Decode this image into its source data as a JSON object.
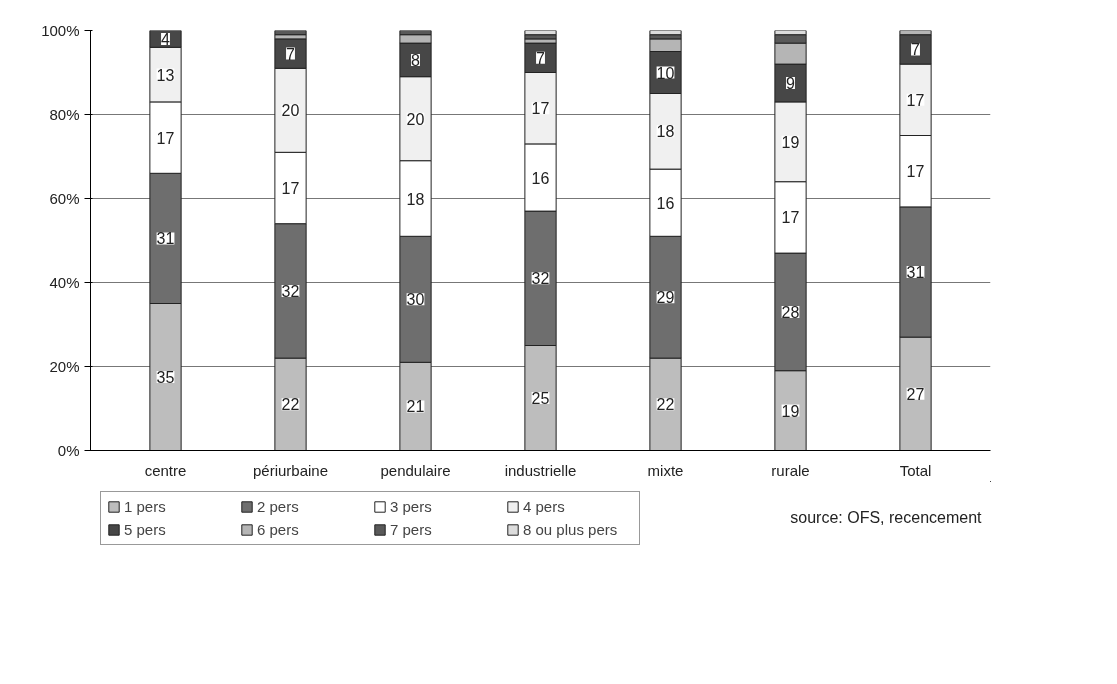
{
  "chart_data": {
    "type": "bar",
    "stacked": true,
    "categories": [
      "centre",
      "périurbaine",
      "pendulaire",
      "industrielle",
      "mixte",
      "rurale",
      "Total"
    ],
    "series": [
      {
        "name": "1 pers",
        "color": "#bdbdbd",
        "values": [
          35,
          22,
          21,
          25,
          22,
          19,
          27
        ],
        "value_labels": [
          "35",
          "22",
          "21",
          "25",
          "22",
          "19",
          "27"
        ]
      },
      {
        "name": "2 pers",
        "color": "#6e6e6e",
        "values": [
          31,
          32,
          30,
          32,
          29,
          28,
          31
        ],
        "value_labels": [
          "31",
          "32",
          "30",
          "32",
          "29",
          "28",
          "31"
        ]
      },
      {
        "name": "3 pers",
        "color": "#ffffff",
        "values": [
          17,
          17,
          18,
          16,
          16,
          17,
          17
        ],
        "value_labels": [
          "17",
          "17",
          "18",
          "16",
          "16",
          "17",
          "17"
        ]
      },
      {
        "name": "4 pers",
        "color": "#f0f0f0",
        "values": [
          13,
          20,
          20,
          17,
          18,
          19,
          17
        ],
        "value_labels": [
          "13",
          "20",
          "20",
          "17",
          "18",
          "19",
          "17"
        ]
      },
      {
        "name": "5 pers",
        "color": "#474747",
        "values": [
          4,
          7,
          8,
          7,
          10,
          9,
          7
        ],
        "value_labels": [
          "4",
          "7",
          "8",
          "7",
          "10",
          "9",
          "7"
        ]
      },
      {
        "name": "6 pers",
        "color": "#b5b5b5",
        "values": [
          0,
          1,
          2,
          1,
          3,
          5,
          1
        ]
      },
      {
        "name": "7 pers",
        "color": "#595959",
        "values": [
          0,
          1,
          1,
          1,
          1,
          2,
          0
        ]
      },
      {
        "name": "8 ou plus pers",
        "color": "#dcdcdc",
        "values": [
          0,
          0,
          0,
          1,
          1,
          1,
          0
        ]
      }
    ],
    "ylim": [
      0,
      100
    ],
    "yticks": [
      {
        "value": 0,
        "label": "0%"
      },
      {
        "value": 20,
        "label": "20%"
      },
      {
        "value": 40,
        "label": "40%"
      },
      {
        "value": 60,
        "label": "60%"
      },
      {
        "value": 80,
        "label": "80%"
      },
      {
        "value": 100,
        "label": "100%"
      }
    ],
    "grid": "y",
    "legend": "bottom",
    "annotations": [
      "source: OFS, recencement"
    ]
  }
}
